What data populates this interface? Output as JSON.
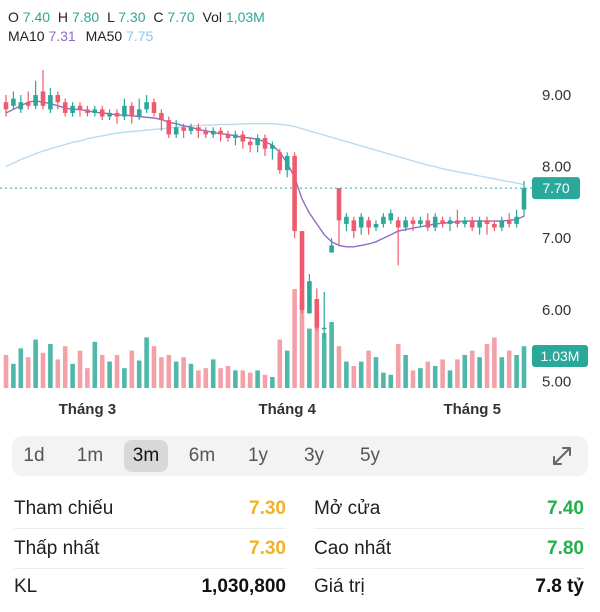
{
  "ohlc": {
    "o_label": "O",
    "o": "7.40",
    "h_label": "H",
    "h": "7.80",
    "l_label": "L",
    "l": "7.30",
    "c_label": "C",
    "c": "7.70",
    "vol_label": "Vol",
    "vol": "1,03M"
  },
  "ma": {
    "ma10_label": "MA10",
    "ma10": "7.31",
    "ma50_label": "MA50",
    "ma50": "7.75"
  },
  "colors": {
    "up": "#2aa89a",
    "down": "#ef5a6e",
    "vol_up": "#4fb8a8",
    "vol_down": "#f4a0a8",
    "ma10": "#8e6cc0",
    "ma50": "#b8dcf2",
    "price_tag": "#2aa89a"
  },
  "chart_data": {
    "type": "candlestick",
    "price_ticks": [
      "9.00",
      "8.00",
      "7.00",
      "6.00",
      "5.00"
    ],
    "ylim": [
      4.95,
      9.35
    ],
    "last_price": "7.70",
    "volume_tag": "1.03M",
    "month_labels": [
      "Tháng 3",
      "Tháng 4",
      "Tháng 5"
    ],
    "month_label_index": [
      11,
      38,
      63
    ],
    "candles": [
      [
        8.9,
        8.8,
        9.0,
        8.7
      ],
      [
        8.85,
        8.95,
        9.05,
        8.8
      ],
      [
        8.8,
        8.9,
        9.0,
        8.75
      ],
      [
        8.9,
        8.85,
        9.05,
        8.8
      ],
      [
        8.85,
        9.0,
        9.2,
        8.8
      ],
      [
        9.05,
        8.85,
        9.35,
        8.8
      ],
      [
        8.8,
        9.0,
        9.1,
        8.75
      ],
      [
        9.0,
        8.9,
        9.05,
        8.8
      ],
      [
        8.9,
        8.75,
        8.95,
        8.7
      ],
      [
        8.75,
        8.85,
        8.9,
        8.7
      ],
      [
        8.85,
        8.8,
        8.9,
        8.7
      ],
      [
        8.8,
        8.75,
        8.85,
        8.7
      ],
      [
        8.75,
        8.8,
        8.85,
        8.7
      ],
      [
        8.8,
        8.7,
        8.85,
        8.65
      ],
      [
        8.7,
        8.75,
        8.8,
        8.65
      ],
      [
        8.75,
        8.7,
        8.8,
        8.6
      ],
      [
        8.7,
        8.85,
        8.95,
        8.65
      ],
      [
        8.85,
        8.7,
        8.9,
        8.6
      ],
      [
        8.7,
        8.8,
        8.95,
        8.65
      ],
      [
        8.8,
        8.9,
        9.0,
        8.75
      ],
      [
        8.9,
        8.75,
        8.95,
        8.7
      ],
      [
        8.75,
        8.65,
        8.8,
        8.5
      ],
      [
        8.65,
        8.45,
        8.7,
        8.4
      ],
      [
        8.45,
        8.55,
        8.65,
        8.4
      ],
      [
        8.55,
        8.5,
        8.6,
        8.4
      ],
      [
        8.5,
        8.55,
        8.6,
        8.45
      ],
      [
        8.55,
        8.5,
        8.6,
        8.4
      ],
      [
        8.5,
        8.45,
        8.55,
        8.4
      ],
      [
        8.45,
        8.5,
        8.55,
        8.4
      ],
      [
        8.5,
        8.45,
        8.55,
        8.35
      ],
      [
        8.45,
        8.4,
        8.5,
        8.35
      ],
      [
        8.4,
        8.45,
        8.5,
        8.3
      ],
      [
        8.45,
        8.35,
        8.5,
        8.25
      ],
      [
        8.35,
        8.3,
        8.4,
        8.2
      ],
      [
        8.3,
        8.4,
        8.45,
        8.2
      ],
      [
        8.4,
        8.25,
        8.45,
        8.15
      ],
      [
        8.25,
        8.3,
        8.35,
        8.1
      ],
      [
        8.2,
        7.95,
        8.25,
        7.9
      ],
      [
        7.95,
        8.15,
        8.2,
        7.85
      ],
      [
        8.15,
        7.1,
        8.2,
        7.0
      ],
      [
        7.1,
        6.0,
        7.0,
        5.95
      ],
      [
        5.95,
        6.4,
        6.5,
        5.95
      ],
      [
        6.15,
        5.75,
        6.3,
        5.7
      ],
      [
        5.75,
        5.75,
        6.25,
        5.6
      ],
      [
        6.8,
        6.9,
        7.0,
        6.8
      ],
      [
        7.7,
        7.25,
        7.7,
        6.9
      ],
      [
        7.2,
        7.3,
        7.35,
        7.1
      ],
      [
        7.25,
        7.1,
        7.3,
        7.0
      ],
      [
        7.15,
        7.3,
        7.35,
        7.05
      ],
      [
        7.25,
        7.15,
        7.3,
        7.05
      ],
      [
        7.15,
        7.2,
        7.25,
        7.1
      ],
      [
        7.2,
        7.3,
        7.35,
        7.15
      ],
      [
        7.25,
        7.35,
        7.4,
        7.2
      ],
      [
        7.25,
        7.15,
        7.3,
        6.62
      ],
      [
        7.15,
        7.25,
        7.3,
        7.1
      ],
      [
        7.25,
        7.2,
        7.3,
        7.1
      ],
      [
        7.2,
        7.25,
        7.3,
        7.15
      ],
      [
        7.25,
        7.15,
        7.35,
        7.1
      ],
      [
        7.15,
        7.3,
        7.35,
        7.1
      ],
      [
        7.25,
        7.2,
        7.3,
        7.15
      ],
      [
        7.2,
        7.25,
        7.3,
        7.1
      ],
      [
        7.25,
        7.2,
        7.4,
        7.15
      ],
      [
        7.2,
        7.25,
        7.3,
        7.15
      ],
      [
        7.25,
        7.15,
        7.3,
        7.1
      ],
      [
        7.15,
        7.25,
        7.3,
        7.05
      ],
      [
        7.25,
        7.2,
        7.3,
        7.05
      ],
      [
        7.2,
        7.15,
        7.25,
        7.1
      ],
      [
        7.15,
        7.25,
        7.3,
        7.1
      ],
      [
        7.25,
        7.2,
        7.35,
        7.15
      ],
      [
        7.2,
        7.3,
        7.4,
        7.15
      ],
      [
        7.4,
        7.7,
        7.8,
        7.3
      ]
    ],
    "volume": [
      0.3,
      0.22,
      0.36,
      0.28,
      0.44,
      0.32,
      0.4,
      0.26,
      0.38,
      0.22,
      0.34,
      0.18,
      0.42,
      0.3,
      0.24,
      0.3,
      0.18,
      0.34,
      0.25,
      0.46,
      0.38,
      0.28,
      0.3,
      0.24,
      0.28,
      0.22,
      0.16,
      0.18,
      0.26,
      0.18,
      0.2,
      0.16,
      0.16,
      0.14,
      0.16,
      0.12,
      0.1,
      0.44,
      0.34,
      0.9,
      0.8,
      0.54,
      0.7,
      0.5,
      0.6,
      0.38,
      0.24,
      0.2,
      0.24,
      0.34,
      0.28,
      0.14,
      0.12,
      0.4,
      0.3,
      0.16,
      0.18,
      0.24,
      0.2,
      0.26,
      0.16,
      0.26,
      0.3,
      0.34,
      0.28,
      0.4,
      0.46,
      0.28,
      0.34,
      0.3,
      0.38
    ],
    "vol_scale_max": 1.0,
    "ma10": [
      8.75,
      8.8,
      8.85,
      8.9,
      8.92,
      8.9,
      8.88,
      8.85,
      8.82,
      8.8,
      8.8,
      8.78,
      8.76,
      8.75,
      8.74,
      8.72,
      8.72,
      8.71,
      8.7,
      8.69,
      8.68,
      8.66,
      8.62,
      8.6,
      8.57,
      8.55,
      8.52,
      8.5,
      8.48,
      8.46,
      8.45,
      8.43,
      8.41,
      8.4,
      8.38,
      8.35,
      8.3,
      8.2,
      8.05,
      7.85,
      7.55,
      7.35,
      7.2,
      7.05,
      6.95,
      6.9,
      6.88,
      6.88,
      6.9,
      6.92,
      6.95,
      7.0,
      7.05,
      7.1,
      7.12,
      7.14,
      7.16,
      7.18,
      7.2,
      7.21,
      7.22,
      7.23,
      7.24,
      7.24,
      7.24,
      7.24,
      7.24,
      7.24,
      7.25,
      7.26,
      7.31
    ],
    "ma50": [
      8.0,
      8.05,
      8.1,
      8.14,
      8.18,
      8.22,
      8.25,
      8.28,
      8.31,
      8.34,
      8.36,
      8.39,
      8.41,
      8.43,
      8.45,
      8.47,
      8.48,
      8.49,
      8.5,
      8.51,
      8.52,
      8.53,
      8.54,
      8.55,
      8.56,
      8.57,
      8.57,
      8.58,
      8.58,
      8.59,
      8.59,
      8.59,
      8.6,
      8.6,
      8.6,
      8.6,
      8.6,
      8.59,
      8.58,
      8.56,
      8.53,
      8.5,
      8.47,
      8.44,
      8.41,
      8.38,
      8.35,
      8.32,
      8.29,
      8.26,
      8.23,
      8.2,
      8.17,
      8.14,
      8.11,
      8.08,
      8.05,
      8.02,
      8.0,
      7.97,
      7.95,
      7.93,
      7.91,
      7.89,
      7.87,
      7.85,
      7.83,
      7.81,
      7.79,
      7.77,
      7.75
    ]
  },
  "tabs": [
    "1d",
    "1m",
    "3m",
    "6m",
    "1y",
    "3y",
    "5y"
  ],
  "active_tab": "3m",
  "stats": {
    "ref_label": "Tham chiếu",
    "ref_value": "7.30",
    "open_label": "Mở cửa",
    "open_value": "7.40",
    "low_label": "Thấp nhất",
    "low_value": "7.30",
    "high_label": "Cao nhất",
    "high_value": "7.80",
    "vol_label": "KL",
    "vol_value": "1,030,800",
    "value_label": "Giá trị",
    "value_value": "7.8 tỷ"
  }
}
